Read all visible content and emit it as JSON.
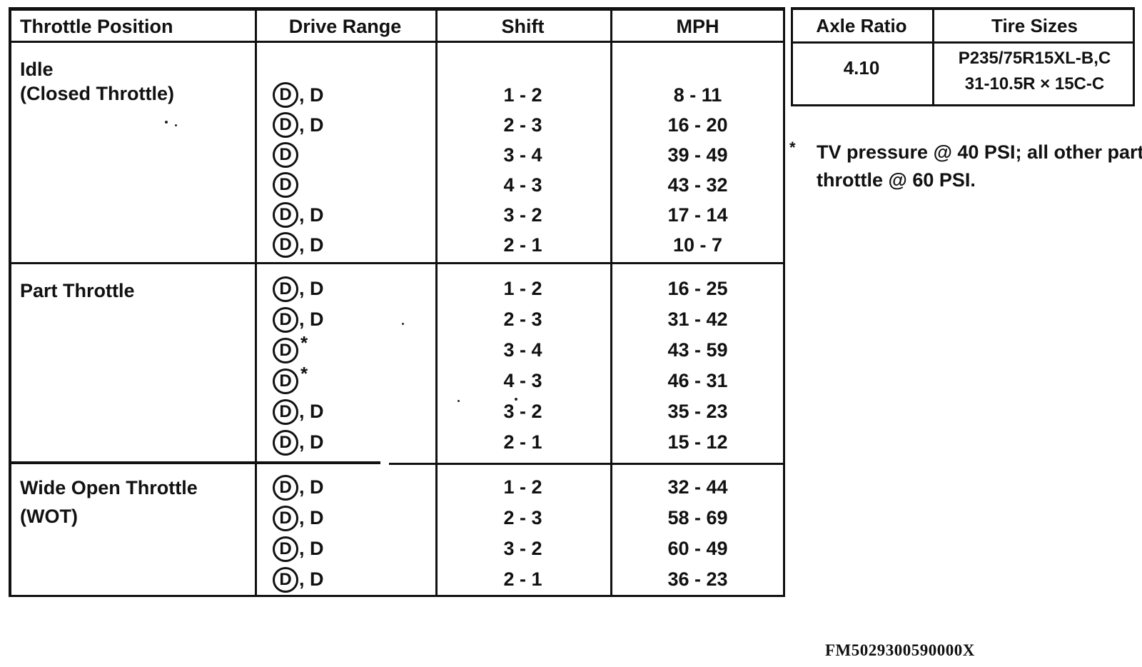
{
  "colors": {
    "ink": "#111111",
    "paper": "#ffffff"
  },
  "shift_table": {
    "headers": {
      "throttle_position": "Throttle Position",
      "drive_range": "Drive Range",
      "shift": "Shift",
      "mph": "MPH"
    },
    "sections": [
      {
        "label_lines": [
          "Idle",
          "(Closed Throttle)"
        ],
        "rows": [
          {
            "drive_circled": "D",
            "drive_suffix": ", D",
            "shift": "1 - 2",
            "mph": "8 - 11"
          },
          {
            "drive_circled": "D",
            "drive_suffix": ", D",
            "shift": "2 - 3",
            "mph": "16 - 20"
          },
          {
            "drive_circled": "D",
            "drive_suffix": "",
            "shift": "3 - 4",
            "mph": "39 - 49"
          },
          {
            "drive_circled": "D",
            "drive_suffix": "",
            "shift": "4 - 3",
            "mph": "43 - 32"
          },
          {
            "drive_circled": "D",
            "drive_suffix": ", D",
            "shift": "3 - 2",
            "mph": "17 - 14"
          },
          {
            "drive_circled": "D",
            "drive_suffix": ", D",
            "shift": "2 - 1",
            "mph": "10 - 7"
          }
        ]
      },
      {
        "label_lines": [
          "Part Throttle"
        ],
        "rows": [
          {
            "drive_circled": "D",
            "drive_suffix": ", D",
            "shift": "1 - 2",
            "mph": "16 - 25"
          },
          {
            "drive_circled": "D",
            "drive_suffix": ", D",
            "shift": "2 - 3",
            "mph": "31 - 42"
          },
          {
            "drive_circled": "D",
            "drive_suffix": "*",
            "shift": "3 - 4",
            "mph": "43 - 59"
          },
          {
            "drive_circled": "D",
            "drive_suffix": "*",
            "shift": "4 - 3",
            "mph": "46 - 31"
          },
          {
            "drive_circled": "D",
            "drive_suffix": ", D",
            "shift": "3 - 2",
            "mph": "35 - 23"
          },
          {
            "drive_circled": "D",
            "drive_suffix": ", D",
            "shift": "2 - 1",
            "mph": "15 - 12"
          }
        ]
      },
      {
        "label_lines": [
          "Wide Open Throttle",
          "(WOT)"
        ],
        "rows": [
          {
            "drive_circled": "D",
            "drive_suffix": ", D",
            "shift": "1 - 2",
            "mph": "32 - 44"
          },
          {
            "drive_circled": "D",
            "drive_suffix": ", D",
            "shift": "2 - 3",
            "mph": "58 - 69"
          },
          {
            "drive_circled": "D",
            "drive_suffix": ", D",
            "shift": "3 - 2",
            "mph": "60 - 49"
          },
          {
            "drive_circled": "D",
            "drive_suffix": ", D",
            "shift": "2 - 1",
            "mph": "36 - 23"
          }
        ]
      }
    ]
  },
  "axle_table": {
    "headers": {
      "axle_ratio": "Axle Ratio",
      "tire_sizes": "Tire Sizes"
    },
    "axle_ratio_value": "4.10",
    "tire_sizes_lines": [
      "P235/75R15XL-B,C",
      "31-10.5R × 15C-C"
    ]
  },
  "footnote": {
    "marker": "*",
    "line1": "TV pressure @ 40 PSI; all other part",
    "line2": "throttle @ 60 PSI."
  },
  "footer": {
    "document_code": "FM5029300590000X"
  }
}
